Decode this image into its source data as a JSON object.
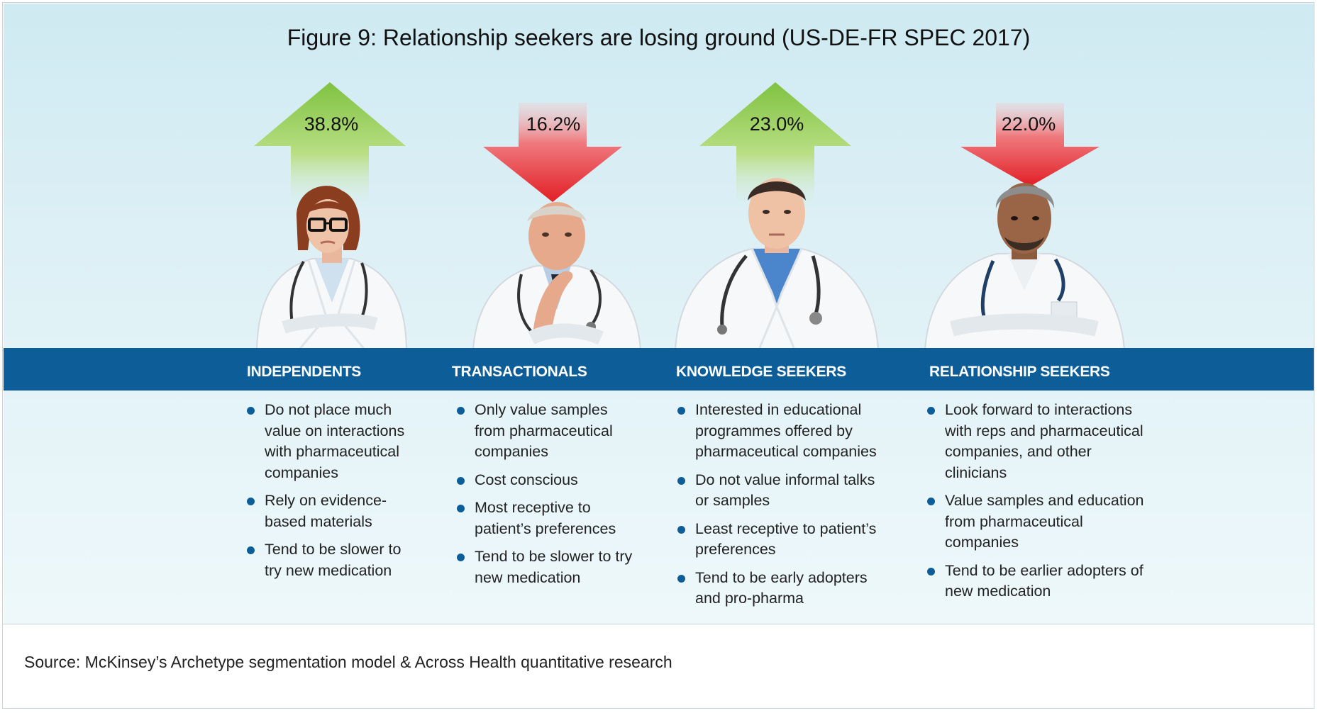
{
  "title": "Figure 9: Relationship seekers are losing ground (US-DE-FR SPEC 2017)",
  "colors": {
    "up": "#8cc63f",
    "down": "#e52128",
    "band": "#0d5d99",
    "bullet": "#0d5d99"
  },
  "segments": [
    {
      "name": "INDEPENDENTS",
      "percent": "38.8%",
      "value": 38.8,
      "trend": "up",
      "bullets": [
        "Do not place much value on interactions with pharmaceutical companies",
        "Rely on evidence-based materials",
        "Tend to be slower to try new medication"
      ]
    },
    {
      "name": "TRANSACTIONALS",
      "percent": "16.2%",
      "value": 16.2,
      "trend": "down",
      "bullets": [
        "Only value samples from pharmaceutical companies",
        "Cost conscious",
        "Most receptive to patient’s preferences",
        "Tend to be slower to try new medication"
      ]
    },
    {
      "name": "KNOWLEDGE SEEKERS",
      "percent": "23.0%",
      "value": 23.0,
      "trend": "up",
      "bullets": [
        "Interested in educational programmes offered by pharmaceutical companies",
        "Do not value informal talks or samples",
        "Least receptive to patient’s preferences",
        "Tend to be early adopters and pro-pharma"
      ]
    },
    {
      "name": "RELATIONSHIP SEEKERS",
      "percent": "22.0%",
      "value": 22.0,
      "trend": "down",
      "bullets": [
        "Look forward to interactions with reps and pharmaceutical companies, and other clinicians",
        "Value samples  and education from pharmaceutical companies",
        "Tend to be earlier adopters of new medication"
      ]
    }
  ],
  "source": "Source: McKinsey’s Archetype segmentation model & Across Health quantitative research"
}
